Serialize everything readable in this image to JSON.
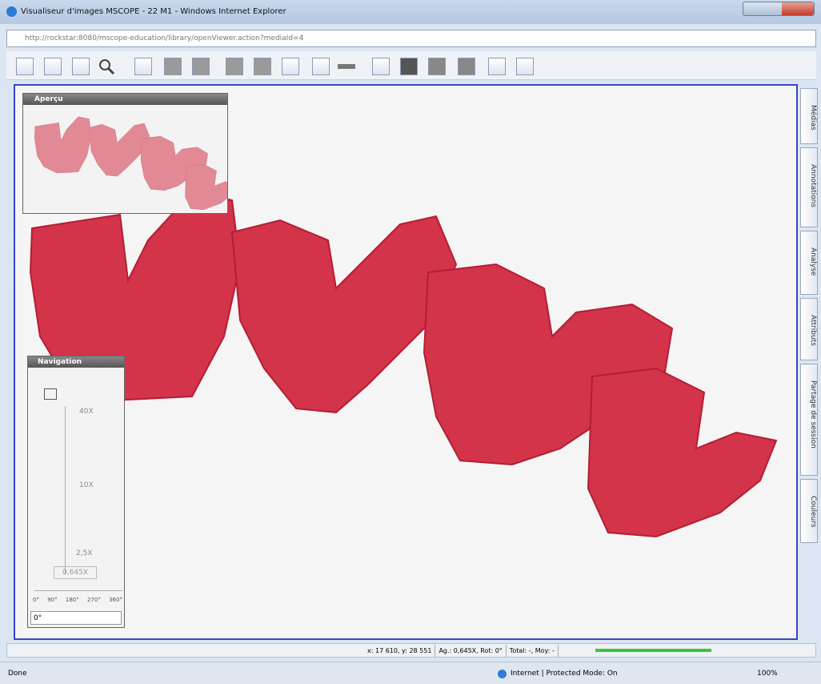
{
  "window": {
    "title": "Visualiseur d'images MSCOPE - 22 M1 - Windows Internet Explorer",
    "address": "http://rockstar:8080/mscope-education/library/openViewer.action?mediaId=4"
  },
  "panels": {
    "overview": {
      "title": "Aperçu"
    },
    "navigation": {
      "title": "Navigation",
      "zoom_levels": [
        "40X",
        "10X",
        "2,5X"
      ],
      "current_zoom": "0,645X",
      "rotation_ticks": [
        "0°",
        "90°",
        "180°",
        "270°",
        "360°"
      ],
      "rotation_input": "0°"
    }
  },
  "sidebar": {
    "tabs": [
      "Médias",
      "Annotations",
      "Analyse",
      "Attributs",
      "Partage de session",
      "Couleurs"
    ]
  },
  "status_bar": {
    "coordinates": "x: 17 610, y: 28 551",
    "magnification": "Ag.: 0,645X, Rot: 0°",
    "stats": "Total: -, Moy: -"
  },
  "browser_status": {
    "left": "Done",
    "zone": "Internet | Protected Mode: On",
    "zoom": "100%"
  }
}
